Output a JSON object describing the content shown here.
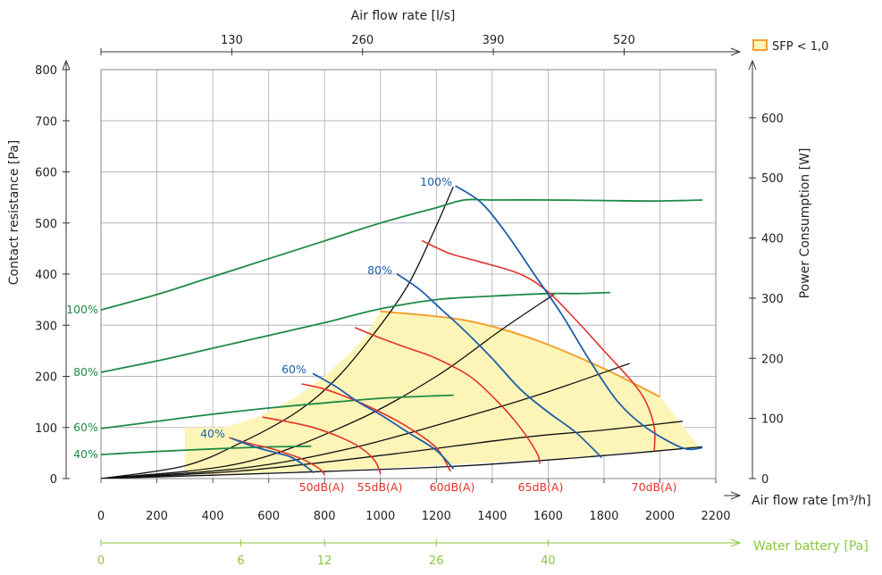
{
  "chart_data": {
    "type": "line",
    "title": "",
    "xlabel": "Air flow rate [m³/h]",
    "ylabel": "Contact resistance [Pa]",
    "y2label": "Power Consumption [W]",
    "x2label": "Air flow rate [l/s]",
    "x3label": "Water battery [Pa]",
    "xlim": [
      0,
      2200
    ],
    "ylim": [
      0,
      800
    ],
    "y2lim": [
      0,
      680
    ],
    "grid": true,
    "x_ticks": [
      "0",
      "200",
      "400",
      "600",
      "800",
      "1000",
      "1200",
      "1400",
      "1600",
      "1800",
      "2000",
      "2200"
    ],
    "y_ticks": [
      "0",
      "100",
      "200",
      "300",
      "400",
      "500",
      "600",
      "700",
      "800"
    ],
    "y2_ticks": [
      "0",
      "100",
      "200",
      "300",
      "400",
      "500",
      "600"
    ],
    "top_ticks": [
      {
        "label": "130",
        "x": 468
      },
      {
        "label": "260",
        "x": 936
      },
      {
        "label": "390",
        "x": 1404
      },
      {
        "label": "520",
        "x": 1872
      }
    ],
    "water_ticks": [
      {
        "label": "0",
        "x": 0
      },
      {
        "label": "6",
        "x": 500
      },
      {
        "label": "12",
        "x": 800
      },
      {
        "label": "26",
        "x": 1200
      },
      {
        "label": "40",
        "x": 1600
      }
    ],
    "legend": {
      "label": "SFP < 1,0",
      "position": "top-right",
      "color": "#f2a12e",
      "fill": "#fdf5b8"
    },
    "colors": {
      "pressure": "#1f5fa8",
      "power": "#1e8a46",
      "noise": "#e3322b",
      "system": "#111111",
      "sfp": "#f2a12e",
      "sfp_fill": "#fdf5b8",
      "water": "#8cc63f"
    },
    "sfp_region": [
      [
        300,
        100
      ],
      [
        440,
        100
      ],
      [
        560,
        120
      ],
      [
        700,
        160
      ],
      [
        800,
        200
      ],
      [
        880,
        240
      ],
      [
        950,
        280
      ],
      [
        1000,
        327
      ],
      [
        1150,
        320
      ],
      [
        1300,
        310
      ],
      [
        1450,
        290
      ],
      [
        1600,
        262
      ],
      [
        1800,
        215
      ],
      [
        2000,
        160
      ],
      [
        2140,
        62
      ],
      [
        1600,
        38
      ],
      [
        1000,
        20
      ],
      [
        500,
        10
      ],
      [
        300,
        7
      ]
    ],
    "fan_curves": [
      {
        "label": "100%",
        "points": [
          [
            1270,
            572
          ],
          [
            1360,
            540
          ],
          [
            1450,
            480
          ],
          [
            1550,
            400
          ],
          [
            1650,
            320
          ],
          [
            1750,
            230
          ],
          [
            1850,
            150
          ],
          [
            1950,
            100
          ],
          [
            2080,
            60
          ],
          [
            2150,
            60
          ]
        ]
      },
      {
        "label": "80%",
        "points": [
          [
            1060,
            400
          ],
          [
            1140,
            370
          ],
          [
            1220,
            330
          ],
          [
            1300,
            290
          ],
          [
            1400,
            235
          ],
          [
            1500,
            175
          ],
          [
            1600,
            130
          ],
          [
            1700,
            90
          ],
          [
            1790,
            42
          ]
        ]
      },
      {
        "label": "60%",
        "points": [
          [
            760,
            205
          ],
          [
            840,
            180
          ],
          [
            920,
            150
          ],
          [
            1000,
            125
          ],
          [
            1100,
            90
          ],
          [
            1200,
            55
          ],
          [
            1260,
            20
          ]
        ]
      },
      {
        "label": "40%",
        "points": [
          [
            470,
            78
          ],
          [
            550,
            62
          ],
          [
            630,
            50
          ],
          [
            680,
            42
          ],
          [
            730,
            25
          ],
          [
            760,
            12
          ]
        ]
      }
    ],
    "power_curves": [
      {
        "label": "100%",
        "points": [
          [
            0,
            330
          ],
          [
            200,
            360
          ],
          [
            400,
            395
          ],
          [
            600,
            430
          ],
          [
            800,
            465
          ],
          [
            1000,
            500
          ],
          [
            1200,
            530
          ],
          [
            1300,
            545
          ],
          [
            1400,
            545
          ],
          [
            1600,
            545
          ],
          [
            1800,
            544
          ],
          [
            2000,
            543
          ],
          [
            2150,
            545
          ]
        ]
      },
      {
        "label": "80%",
        "points": [
          [
            0,
            208
          ],
          [
            200,
            230
          ],
          [
            400,
            255
          ],
          [
            600,
            280
          ],
          [
            800,
            305
          ],
          [
            1000,
            332
          ],
          [
            1200,
            350
          ],
          [
            1400,
            357
          ],
          [
            1600,
            362
          ],
          [
            1700,
            362
          ],
          [
            1820,
            364
          ]
        ]
      },
      {
        "label": "60%",
        "points": [
          [
            0,
            98
          ],
          [
            200,
            112
          ],
          [
            400,
            126
          ],
          [
            600,
            138
          ],
          [
            800,
            148
          ],
          [
            1000,
            157
          ],
          [
            1200,
            162
          ],
          [
            1260,
            163
          ]
        ]
      },
      {
        "label": "40%",
        "points": [
          [
            0,
            47
          ],
          [
            200,
            53
          ],
          [
            400,
            58
          ],
          [
            600,
            62
          ],
          [
            750,
            63
          ]
        ]
      }
    ],
    "noise_curves": [
      {
        "label": "50dB(A)",
        "points": [
          [
            460,
            80
          ],
          [
            520,
            70
          ],
          [
            600,
            60
          ],
          [
            660,
            50
          ],
          [
            720,
            38
          ],
          [
            780,
            20
          ],
          [
            800,
            8
          ]
        ]
      },
      {
        "label": "55dB(A)",
        "points": [
          [
            580,
            120
          ],
          [
            660,
            112
          ],
          [
            760,
            100
          ],
          [
            860,
            80
          ],
          [
            930,
            60
          ],
          [
            980,
            35
          ],
          [
            1000,
            10
          ]
        ]
      },
      {
        "label": "60dB(A)",
        "points": [
          [
            720,
            185
          ],
          [
            800,
            175
          ],
          [
            900,
            155
          ],
          [
            1000,
            130
          ],
          [
            1100,
            100
          ],
          [
            1200,
            60
          ],
          [
            1250,
            15
          ]
        ]
      },
      {
        "label": "65dB(A)",
        "points": [
          [
            910,
            295
          ],
          [
            1000,
            275
          ],
          [
            1100,
            255
          ],
          [
            1200,
            235
          ],
          [
            1320,
            200
          ],
          [
            1420,
            150
          ],
          [
            1500,
            100
          ],
          [
            1560,
            50
          ],
          [
            1570,
            30
          ]
        ]
      },
      {
        "label": "70dB(A)",
        "points": [
          [
            1150,
            465
          ],
          [
            1250,
            440
          ],
          [
            1350,
            425
          ],
          [
            1500,
            400
          ],
          [
            1600,
            365
          ],
          [
            1700,
            310
          ],
          [
            1800,
            250
          ],
          [
            1900,
            190
          ],
          [
            1950,
            150
          ],
          [
            1980,
            100
          ],
          [
            1980,
            55
          ]
        ]
      }
    ],
    "system_curves": [
      {
        "points": [
          [
            0,
            0
          ],
          [
            300,
            25
          ],
          [
            500,
            70
          ],
          [
            700,
            130
          ],
          [
            850,
            200
          ],
          [
            1000,
            300
          ],
          [
            1100,
            380
          ],
          [
            1180,
            470
          ],
          [
            1260,
            570
          ]
        ]
      },
      {
        "points": [
          [
            0,
            0
          ],
          [
            500,
            30
          ],
          [
            900,
            110
          ],
          [
            1200,
            200
          ],
          [
            1430,
            290
          ],
          [
            1620,
            360
          ]
        ]
      },
      {
        "points": [
          [
            0,
            0
          ],
          [
            500,
            20
          ],
          [
            900,
            60
          ],
          [
            1300,
            120
          ],
          [
            1600,
            170
          ],
          [
            1890,
            225
          ]
        ]
      },
      {
        "points": [
          [
            0,
            0
          ],
          [
            500,
            15
          ],
          [
            1000,
            45
          ],
          [
            1500,
            80
          ],
          [
            1800,
            95
          ],
          [
            2080,
            112
          ]
        ]
      },
      {
        "points": [
          [
            0,
            0
          ],
          [
            700,
            12
          ],
          [
            1300,
            25
          ],
          [
            1800,
            45
          ],
          [
            2150,
            62
          ]
        ]
      }
    ]
  }
}
